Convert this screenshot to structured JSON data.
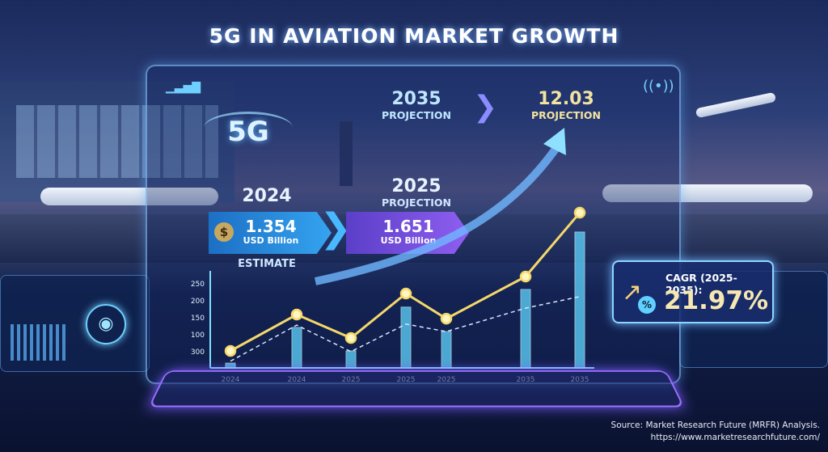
{
  "title": "5G IN AVIATION MARKET GROWTH",
  "logo_text": "5G",
  "stats": {
    "y2035": {
      "year": "2035",
      "label": "PROJECTION"
    },
    "v2035": {
      "value": "12.03",
      "label": "PROJECTION"
    },
    "y2024": {
      "year": "2024",
      "value": "1.354",
      "unit": "USD Billion",
      "label": "ESTIMATE"
    },
    "y2025": {
      "year": "2025",
      "label": "PROJECTION",
      "value": "1.651",
      "unit": "USD Billion"
    }
  },
  "cagr": {
    "label": "CAGR (2025-2035):",
    "value": "21.97%"
  },
  "source": {
    "line1": "Source: Market Research Future (MRFR) Analysis.",
    "line2": "https://www.marketresearchfuture.com/"
  },
  "colors": {
    "line": "#f5d86a",
    "bar": "#5fd6ff",
    "dashed": "#d8e6ff",
    "accent": "#9a6bff"
  },
  "chart_data": {
    "type": "line",
    "title": "",
    "categories": [
      "2024",
      "2024",
      "2025",
      "2025",
      "2025",
      "2035",
      "2035"
    ],
    "y_ticks": [
      "300",
      "100",
      "150",
      "200",
      "250"
    ],
    "ylim": [
      0,
      260
    ],
    "series": [
      {
        "name": "line",
        "type": "line",
        "values": [
          50,
          157,
          88,
          219,
          145,
          269,
          457
        ]
      },
      {
        "name": "bars",
        "type": "bar",
        "values": [
          14,
          119,
          50,
          179,
          107,
          231,
          400
        ]
      },
      {
        "name": "dashed",
        "type": "line",
        "values": [
          20,
          126,
          48,
          129,
          107,
          176,
          210
        ]
      }
    ],
    "grid": false
  }
}
